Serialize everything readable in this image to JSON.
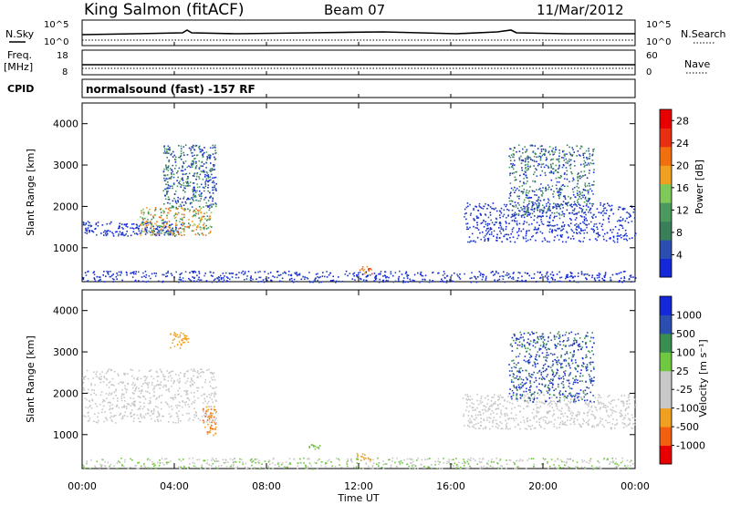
{
  "header": {
    "station": "King Salmon (fitACF)",
    "beam": "Beam 07",
    "date": "11/Mar/2012"
  },
  "status_panels": {
    "nsky_label": "N.Sky",
    "nsearch_label": "N.Search",
    "freq_label_line1": "Freq.",
    "freq_label_line2": "[MHz]",
    "nave_label": "Nave",
    "cpid_label": "CPID",
    "cpid_text": "normalsound (fast) -157 RF",
    "nsky_ticks": [
      "10^5",
      "10^0"
    ],
    "nsearch_ticks": [
      "10^5",
      "10^0"
    ],
    "freq_ticks": [
      "18",
      "8"
    ],
    "nave_ticks": [
      "60",
      "0"
    ]
  },
  "colors": {
    "power_scale": [
      "#1428d8",
      "#2b4fb0",
      "#3a7f5a",
      "#4a9a60",
      "#7ec95a",
      "#f0a020",
      "#f07010",
      "#e83010",
      "#e80000"
    ],
    "velocity_scale": [
      "#e80000",
      "#f06010",
      "#f0a020",
      "#c8c8c8",
      "#c8c8c8",
      "#70c840",
      "#3a8f50",
      "#2b4fb0",
      "#1428d8"
    ]
  },
  "chart_data": [
    {
      "type": "heatmap",
      "name": "power-panel",
      "title": "",
      "xlabel": "Time UT",
      "ylabel": "Slant Range [km]",
      "xlim": [
        "00:00",
        "24:00"
      ],
      "ylim": [
        180,
        4500
      ],
      "x_ticks": [
        "00:00",
        "04:00",
        "08:00",
        "12:00",
        "16:00",
        "20:00",
        "00:00"
      ],
      "y_ticks": [
        1000,
        2000,
        3000,
        4000
      ],
      "colorbar": {
        "label": "Power [dB]",
        "ticks": [
          "4",
          "8",
          "12",
          "16",
          "20",
          "24",
          "28"
        ],
        "range": [
          0,
          30
        ]
      },
      "regions": [
        {
          "t0": 0.0,
          "t1": 4.3,
          "r0": 1300,
          "r1": 1650,
          "level": "low"
        },
        {
          "t0": 2.5,
          "t1": 5.6,
          "r0": 1300,
          "r1": 2000,
          "level": "mid-high"
        },
        {
          "t0": 3.5,
          "t1": 5.8,
          "r0": 2000,
          "r1": 3500,
          "level": "low-mid"
        },
        {
          "t0": 16.5,
          "t1": 24.0,
          "r0": 1150,
          "r1": 2100,
          "level": "low"
        },
        {
          "t0": 18.5,
          "t1": 22.2,
          "r0": 1800,
          "r1": 3500,
          "level": "low-mid"
        },
        {
          "t0": 0.0,
          "t1": 24.0,
          "r0": 180,
          "r1": 450,
          "level": "low"
        },
        {
          "t0": 11.9,
          "t1": 12.6,
          "r0": 380,
          "r1": 560,
          "level": "high"
        }
      ]
    },
    {
      "type": "heatmap",
      "name": "velocity-panel",
      "title": "",
      "xlabel": "Time UT",
      "ylabel": "Slant Range [km]",
      "xlim": [
        "00:00",
        "24:00"
      ],
      "ylim": [
        180,
        4500
      ],
      "x_ticks": [
        "00:00",
        "04:00",
        "08:00",
        "12:00",
        "16:00",
        "20:00",
        "00:00"
      ],
      "y_ticks": [
        1000,
        2000,
        3000,
        4000
      ],
      "colorbar": {
        "label": "Velocity [m s⁻¹]",
        "ticks": [
          "1000",
          "500",
          "100",
          "25",
          "-25",
          "-100",
          "-500",
          "-1000"
        ],
        "range": [
          -1000,
          1000
        ]
      },
      "regions": [
        {
          "t0": 0.0,
          "t1": 5.8,
          "r0": 1300,
          "r1": 2600,
          "level": "~0 (ground scatter)"
        },
        {
          "t0": 5.2,
          "t1": 5.8,
          "r0": 1000,
          "r1": 1700,
          "level": "-100 to -500"
        },
        {
          "t0": 3.8,
          "t1": 4.6,
          "r0": 3100,
          "r1": 3500,
          "level": "-100"
        },
        {
          "t0": 16.5,
          "t1": 24.0,
          "r0": 1150,
          "r1": 2000,
          "level": "~0 (ground scatter)"
        },
        {
          "t0": 18.5,
          "t1": 22.2,
          "r0": 1800,
          "r1": 3500,
          "level": "500 to 1000"
        },
        {
          "t0": 0.0,
          "t1": 24.0,
          "r0": 180,
          "r1": 450,
          "level": "~25 to 100"
        },
        {
          "t0": 9.8,
          "t1": 10.3,
          "r0": 650,
          "r1": 800,
          "level": "100"
        },
        {
          "t0": 11.9,
          "t1": 12.5,
          "r0": 380,
          "r1": 560,
          "level": "-100"
        }
      ]
    }
  ]
}
